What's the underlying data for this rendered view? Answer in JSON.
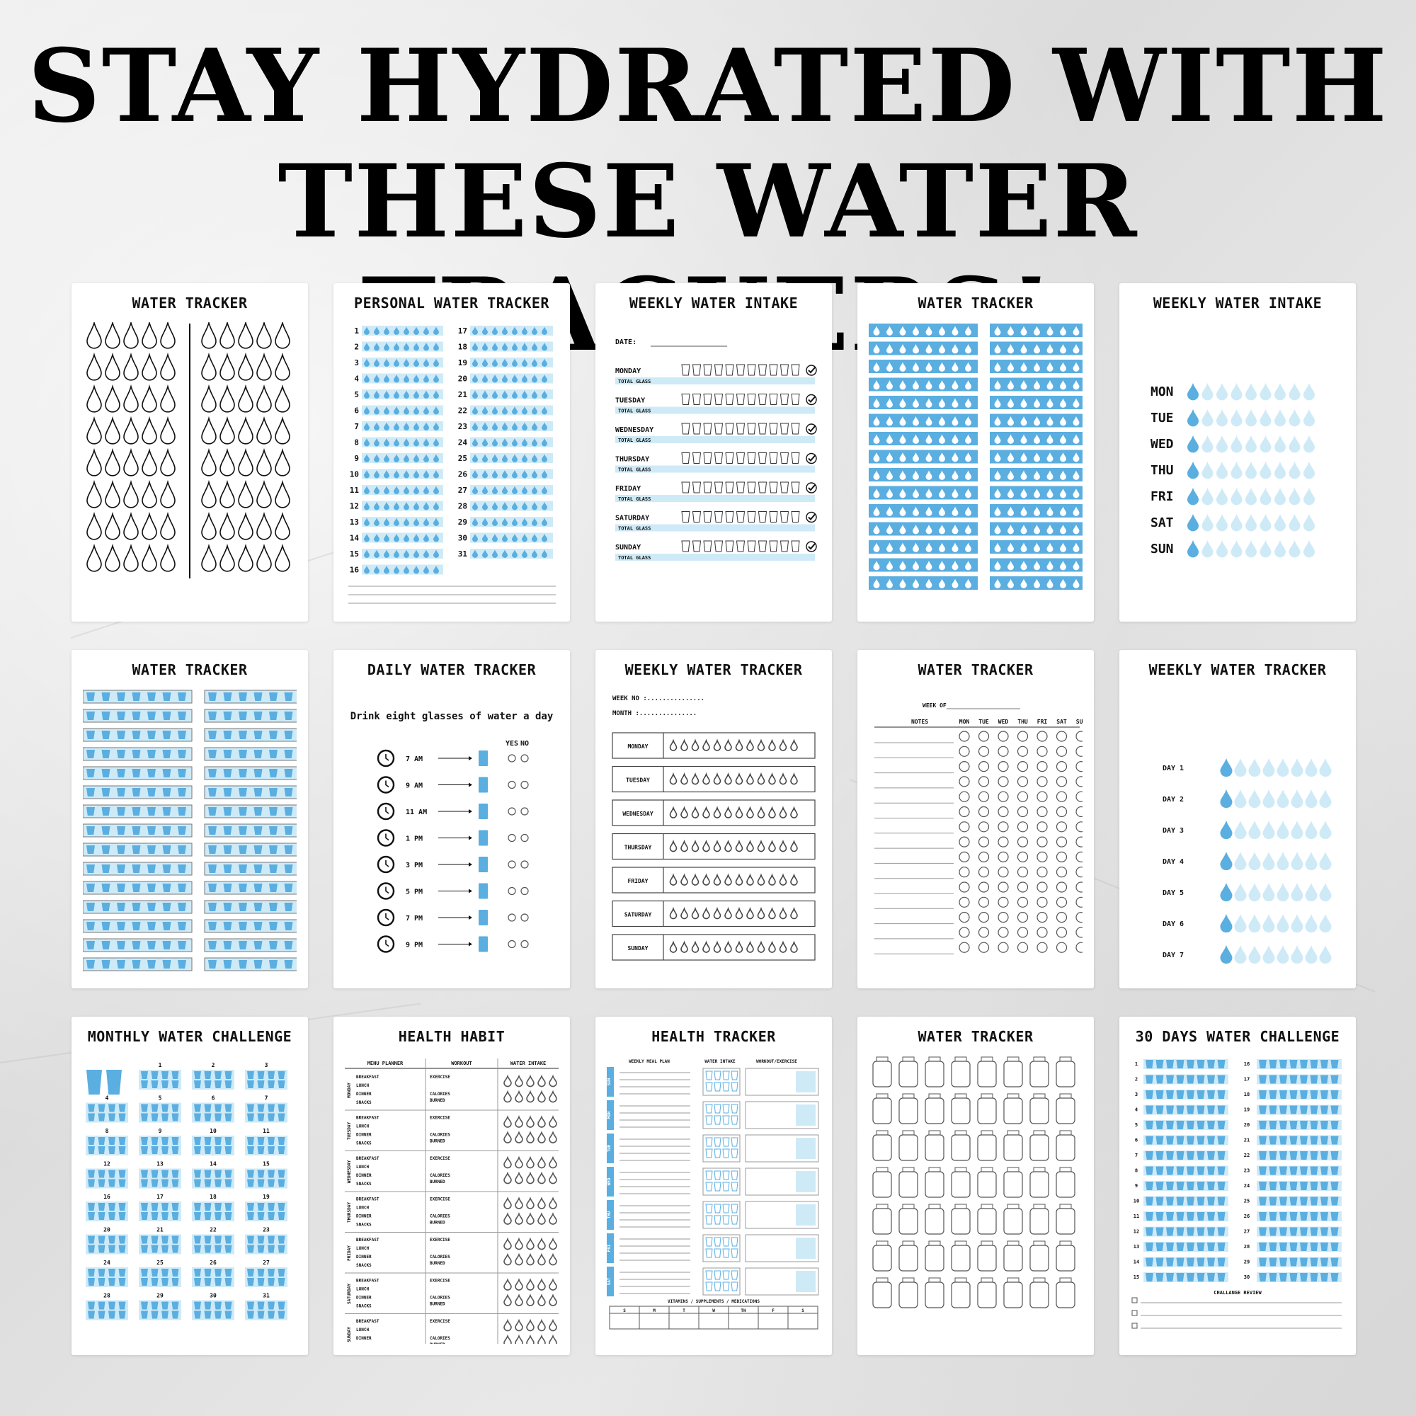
{
  "headline": {
    "line1": "STAY HYDRATED WITH",
    "line2": "THESE WATER TRACKERS!"
  },
  "colors": {
    "accent": "#5aaee0",
    "light_accent": "#cfeaf7",
    "ink": "#111111"
  },
  "cards": [
    {
      "title": "WATER TRACKER"
    },
    {
      "title": "PERSONAL WATER TRACKER",
      "days_left": [
        "1",
        "2",
        "3",
        "4",
        "5",
        "6",
        "7",
        "8",
        "9",
        "10",
        "11",
        "12",
        "13",
        "14",
        "15",
        "16"
      ],
      "days_right": [
        "17",
        "18",
        "19",
        "20",
        "21",
        "22",
        "23",
        "24",
        "25",
        "26",
        "27",
        "28",
        "29",
        "30",
        "31"
      ]
    },
    {
      "title": "WEEKLY WATER INTAKE",
      "date_label": "DATE:",
      "total_label": "TOTAL GLASS",
      "days": [
        "MONDAY",
        "TUESDAY",
        "WEDNESDAY",
        "THURSDAY",
        "FRIDAY",
        "SATURDAY",
        "SUNDAY"
      ]
    },
    {
      "title": "WATER TRACKER"
    },
    {
      "title": "WEEKLY WATER INTAKE",
      "days": [
        "MON",
        "TUE",
        "WED",
        "THU",
        "FRI",
        "SAT",
        "SUN"
      ]
    },
    {
      "title": "WATER TRACKER"
    },
    {
      "title": "DAILY WATER TRACKER",
      "subtitle": "Drink eight glasses of water a day",
      "yes_label": "YES",
      "no_label": "NO",
      "times": [
        "7 AM",
        "9 AM",
        "11 AM",
        "1 PM",
        "3 PM",
        "5 PM",
        "7 PM",
        "9 PM"
      ]
    },
    {
      "title": "WEEKLY WATER TRACKER",
      "week_label": "WEEK NO :...............",
      "month_label": "MONTH :...............",
      "days": [
        "MONDAY",
        "TUESDAY",
        "WEDNESDAY",
        "THURSDAY",
        "FRIDAY",
        "SATURDAY",
        "SUNDAY"
      ]
    },
    {
      "title": "WATER TRACKER",
      "week_of": "WEEK OF",
      "notes": "NOTES",
      "days": [
        "MON",
        "TUE",
        "WED",
        "THU",
        "FRI",
        "SAT",
        "SUN"
      ]
    },
    {
      "title": "WEEKLY WATER TRACKER",
      "days": [
        "DAY 1",
        "DAY 2",
        "DAY 3",
        "DAY 4",
        "DAY 5",
        "DAY 6",
        "DAY 7"
      ]
    },
    {
      "title": "MONTHLY WATER CHALLENGE",
      "days": [
        "1",
        "2",
        "3",
        "4",
        "5",
        "6",
        "7",
        "8",
        "9",
        "10",
        "11",
        "12",
        "13",
        "14",
        "15",
        "16",
        "17",
        "18",
        "19",
        "20",
        "21",
        "22",
        "23",
        "24",
        "25",
        "26",
        "27",
        "28",
        "29",
        "30",
        "31"
      ]
    },
    {
      "title": "HEALTH HABIT",
      "headers": [
        "MENU PLANNER",
        "WORKOUT",
        "WATER INTAKE"
      ],
      "days": [
        "MONDAY",
        "TUESDAY",
        "WEDNESDAY",
        "THURSDAY",
        "FRIDAY",
        "SATURDAY",
        "SUNDAY"
      ],
      "meals": [
        "BREAKFAST",
        "LUNCH",
        "DINNER",
        "SNACKS"
      ],
      "workout": [
        "EXERCISE",
        "CALORIES",
        "BURNED"
      ]
    },
    {
      "title": "HEALTH TRACKER",
      "headers": [
        "WEEKLY MEAL PLAN",
        "WATER INTAKE",
        "WORKOUT/EXERCISE"
      ],
      "days": [
        "SUN",
        "MON",
        "TUE",
        "WED",
        "THU",
        "FRI",
        "SAT"
      ],
      "footer": "VITAMINS / SUPPLEMENTS / MEDICATIONS",
      "footer_days": [
        "S",
        "M",
        "T",
        "W",
        "TH",
        "F",
        "S"
      ]
    },
    {
      "title": "WATER TRACKER"
    },
    {
      "title": "30 DAYS WATER CHALLENGE",
      "days_left": [
        "1",
        "2",
        "3",
        "4",
        "5",
        "6",
        "7",
        "8",
        "9",
        "10",
        "11",
        "12",
        "13",
        "14",
        "15"
      ],
      "days_right": [
        "16",
        "17",
        "18",
        "19",
        "20",
        "21",
        "22",
        "23",
        "24",
        "25",
        "26",
        "27",
        "28",
        "29",
        "30"
      ],
      "review": "CHALLANGE REVIEW"
    }
  ]
}
